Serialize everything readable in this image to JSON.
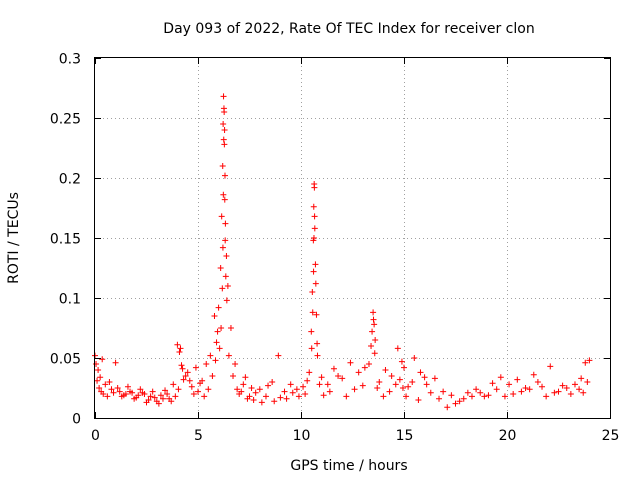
{
  "chart_data": {
    "type": "scatter",
    "title": "Day 093 of 2022, Rate Of TEC Index for receiver clon",
    "xlabel": "GPS time / hours",
    "ylabel": "ROTI / TECUs",
    "xlim": [
      0,
      25
    ],
    "ylim": [
      0,
      0.3
    ],
    "xticks": [
      0,
      5,
      10,
      15,
      20,
      25
    ],
    "xtick_labels": [
      "0",
      "5",
      "10",
      "15",
      "20",
      "25"
    ],
    "yticks": [
      0,
      0.05,
      0.1,
      0.15,
      0.2,
      0.25,
      0.3
    ],
    "ytick_labels": [
      "0",
      "0.05",
      "0.1",
      "0.15",
      "0.2",
      "0.25",
      "0.3"
    ],
    "grid": true,
    "marker": "+",
    "color": "#ff0000",
    "series": [
      {
        "name": "ROTI",
        "x": [
          0.0,
          0.1,
          0.2,
          0.3,
          0.4,
          0.5,
          0.6,
          0.8,
          1.0,
          1.2,
          1.4,
          1.6,
          1.8,
          2.0,
          2.2,
          2.4,
          2.6,
          2.8,
          3.0,
          3.2,
          3.4,
          3.6,
          3.8,
          4.0,
          4.1,
          4.2,
          4.3,
          4.5,
          4.7,
          4.9,
          5.0,
          5.2,
          5.4,
          5.6,
          5.8,
          5.9,
          6.0,
          6.1,
          6.15,
          6.2,
          6.22,
          6.24,
          6.26,
          6.28,
          6.3,
          6.32,
          6.35,
          6.4,
          6.5,
          6.7,
          6.9,
          7.1,
          7.3,
          7.5,
          7.7,
          8.0,
          8.3,
          8.6,
          8.9,
          9.2,
          9.5,
          9.8,
          10.1,
          10.3,
          10.5,
          10.55,
          10.6,
          10.62,
          10.64,
          10.66,
          10.7,
          10.75,
          10.8,
          11.0,
          11.3,
          11.6,
          12.0,
          12.4,
          12.8,
          13.1,
          13.4,
          13.5,
          13.55,
          13.6,
          13.8,
          14.1,
          14.4,
          14.7,
          14.9,
          15.0,
          15.2,
          15.5,
          15.8,
          16.1,
          16.5,
          16.9,
          17.3,
          17.7,
          18.1,
          18.5,
          18.9,
          19.3,
          19.7,
          20.1,
          20.5,
          20.9,
          21.3,
          21.7,
          22.1,
          22.5,
          22.9,
          23.3,
          23.6,
          23.8,
          24.0,
          0.05,
          0.15,
          0.25,
          0.35,
          0.7,
          0.9,
          1.1,
          1.3,
          1.5,
          1.7,
          1.9,
          2.1,
          2.3,
          2.5,
          2.7,
          2.9,
          3.1,
          3.3,
          3.5,
          3.7,
          3.9,
          4.05,
          4.15,
          4.25,
          4.4,
          4.6,
          4.8,
          5.1,
          5.3,
          5.5,
          5.7,
          5.85,
          5.95,
          6.05,
          6.12,
          6.18,
          6.21,
          6.23,
          6.25,
          6.27,
          6.29,
          6.31,
          6.33,
          6.38,
          6.45,
          6.6,
          6.8,
          7.0,
          7.2,
          7.4,
          7.6,
          7.8,
          8.1,
          8.4,
          8.7,
          9.0,
          9.3,
          9.6,
          9.9,
          10.2,
          10.4,
          10.52,
          10.57,
          10.61,
          10.63,
          10.65,
          10.67,
          10.72,
          10.78,
          10.9,
          11.1,
          11.4,
          11.8,
          12.2,
          12.6,
          13.0,
          13.3,
          13.45,
          13.52,
          13.58,
          13.7,
          14.0,
          14.3,
          14.6,
          14.8,
          14.95,
          15.1,
          15.4,
          15.7,
          16.0,
          16.3,
          16.7,
          17.1,
          17.5,
          17.9,
          18.3,
          18.7,
          19.1,
          19.5,
          19.9,
          20.3,
          20.7,
          21.1,
          21.5,
          21.9,
          22.3,
          22.7,
          23.1,
          23.5,
          23.7,
          23.9
        ],
        "y": [
          0.052,
          0.031,
          0.025,
          0.022,
          0.02,
          0.028,
          0.018,
          0.024,
          0.046,
          0.022,
          0.019,
          0.026,
          0.021,
          0.017,
          0.024,
          0.02,
          0.015,
          0.022,
          0.014,
          0.019,
          0.023,
          0.016,
          0.028,
          0.061,
          0.055,
          0.044,
          0.032,
          0.038,
          0.026,
          0.042,
          0.022,
          0.031,
          0.045,
          0.052,
          0.085,
          0.063,
          0.092,
          0.125,
          0.168,
          0.21,
          0.245,
          0.268,
          0.258,
          0.228,
          0.182,
          0.148,
          0.118,
          0.098,
          0.052,
          0.035,
          0.024,
          0.022,
          0.034,
          0.018,
          0.015,
          0.024,
          0.018,
          0.03,
          0.052,
          0.022,
          0.028,
          0.024,
          0.026,
          0.031,
          0.072,
          0.105,
          0.148,
          0.176,
          0.195,
          0.168,
          0.128,
          0.086,
          0.052,
          0.034,
          0.028,
          0.041,
          0.033,
          0.046,
          0.038,
          0.042,
          0.06,
          0.088,
          0.078,
          0.065,
          0.03,
          0.04,
          0.035,
          0.058,
          0.047,
          0.042,
          0.026,
          0.05,
          0.038,
          0.028,
          0.033,
          0.022,
          0.019,
          0.014,
          0.021,
          0.024,
          0.018,
          0.029,
          0.034,
          0.028,
          0.032,
          0.025,
          0.036,
          0.026,
          0.043,
          0.022,
          0.025,
          0.028,
          0.033,
          0.046,
          0.048,
          0.045,
          0.04,
          0.034,
          0.049,
          0.03,
          0.021,
          0.025,
          0.018,
          0.02,
          0.022,
          0.016,
          0.019,
          0.021,
          0.013,
          0.018,
          0.017,
          0.012,
          0.016,
          0.02,
          0.014,
          0.018,
          0.024,
          0.058,
          0.041,
          0.035,
          0.031,
          0.02,
          0.029,
          0.018,
          0.024,
          0.035,
          0.048,
          0.072,
          0.058,
          0.075,
          0.108,
          0.142,
          0.186,
          0.232,
          0.255,
          0.24,
          0.202,
          0.162,
          0.135,
          0.11,
          0.075,
          0.045,
          0.02,
          0.028,
          0.016,
          0.025,
          0.021,
          0.013,
          0.027,
          0.014,
          0.017,
          0.016,
          0.021,
          0.018,
          0.02,
          0.038,
          0.058,
          0.088,
          0.122,
          0.15,
          0.192,
          0.158,
          0.112,
          0.062,
          0.028,
          0.019,
          0.022,
          0.035,
          0.018,
          0.024,
          0.027,
          0.045,
          0.072,
          0.082,
          0.054,
          0.025,
          0.018,
          0.022,
          0.028,
          0.032,
          0.025,
          0.018,
          0.03,
          0.015,
          0.034,
          0.021,
          0.016,
          0.009,
          0.012,
          0.016,
          0.018,
          0.021,
          0.019,
          0.024,
          0.018,
          0.02,
          0.022,
          0.024,
          0.03,
          0.018,
          0.021,
          0.027,
          0.02,
          0.024,
          0.021,
          0.03
        ]
      }
    ]
  }
}
